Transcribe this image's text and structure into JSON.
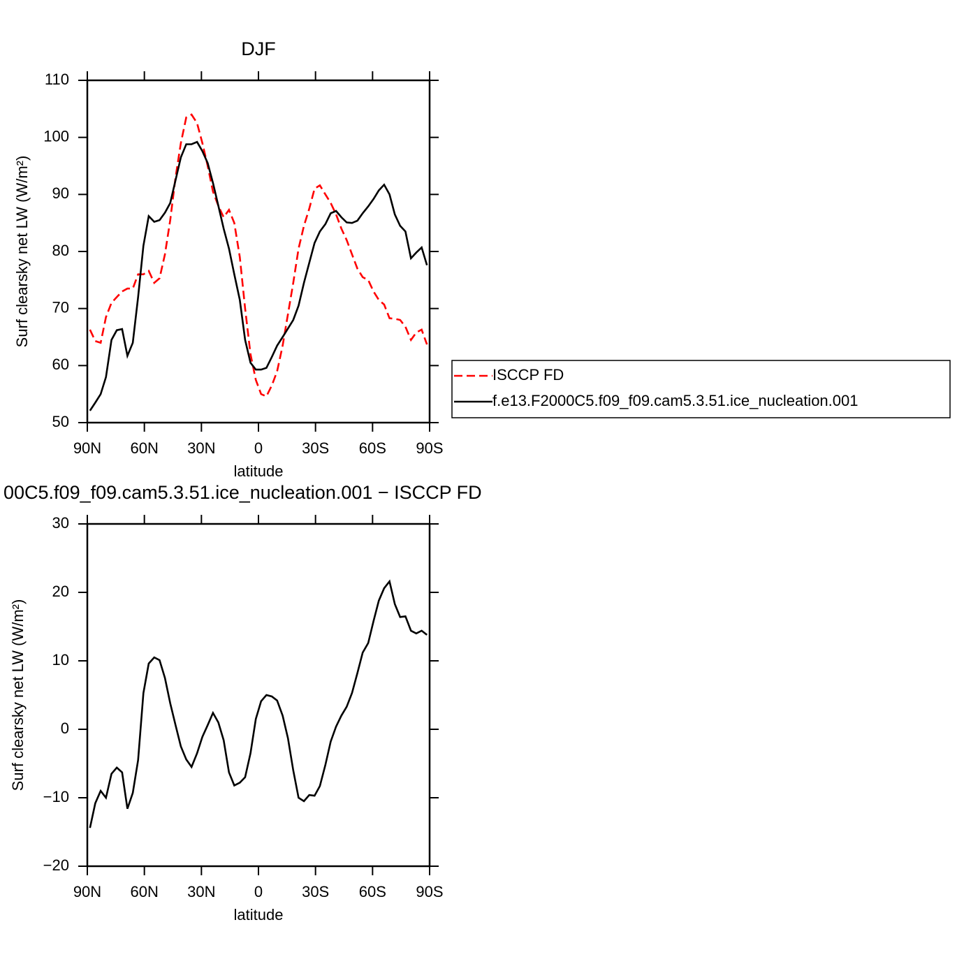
{
  "chart_data": [
    {
      "type": "line",
      "title": "DJF",
      "x_label": "latitude",
      "y_label": "Surf clearsky net LW (W/m²)",
      "x": [
        88.6,
        85.8,
        83.0,
        80.2,
        77.3,
        74.5,
        71.7,
        68.9,
        66.1,
        63.3,
        60.5,
        57.7,
        54.8,
        52.0,
        49.2,
        46.4,
        43.6,
        40.8,
        38.0,
        35.2,
        32.3,
        29.5,
        26.7,
        23.9,
        21.1,
        18.3,
        15.5,
        12.7,
        9.8,
        7.0,
        4.2,
        1.4,
        -1.4,
        -4.2,
        -7.0,
        -9.8,
        -12.7,
        -15.5,
        -18.3,
        -21.1,
        -23.9,
        -26.7,
        -29.5,
        -32.3,
        -35.2,
        -38.0,
        -40.8,
        -43.6,
        -46.4,
        -49.2,
        -52.0,
        -54.8,
        -57.7,
        -60.5,
        -63.3,
        -66.1,
        -68.9,
        -71.7,
        -74.5,
        -77.3,
        -80.2,
        -83.0,
        -85.8,
        -88.6
      ],
      "xlim": [
        90,
        -90
      ],
      "xticks": [
        {
          "value": 90,
          "label": "90N"
        },
        {
          "value": 60,
          "label": "60N"
        },
        {
          "value": 30,
          "label": "30N"
        },
        0,
        {
          "value": -30,
          "label": "30S"
        },
        {
          "value": -60,
          "label": "60S"
        },
        {
          "value": -90,
          "label": "90S"
        }
      ],
      "ylim": [
        50,
        110
      ],
      "yticks": [
        50,
        60,
        70,
        80,
        90,
        100,
        110
      ],
      "legend": "right",
      "series": [
        {
          "name": "ISCCP FD",
          "color": "#ff0000",
          "line_style": "dashed",
          "values": [
            66.3,
            64.3,
            64,
            68.5,
            71,
            72,
            73,
            73.5,
            73.5,
            76,
            76,
            76.6,
            74.5,
            75.3,
            79.5,
            85.5,
            93,
            99,
            103.5,
            104,
            102.5,
            99,
            95,
            90.5,
            88,
            86,
            87.3,
            85,
            79,
            70,
            62,
            57.5,
            55,
            54.6,
            56.5,
            59,
            63.5,
            69,
            74.5,
            80.5,
            84.5,
            87.5,
            91,
            91.6,
            90,
            88.5,
            86.5,
            84,
            82,
            79.5,
            77,
            75.5,
            75,
            73,
            71.5,
            70.7,
            68.3,
            68.2,
            68,
            66.8,
            64.5,
            65.8,
            66.3,
            63.7
          ]
        },
        {
          "name": "f.e13.F2000C5.f09_f09.cam5.3.51.ice_nucleation.001",
          "color": "#000000",
          "line_style": "solid",
          "values": [
            52.1,
            53.5,
            55,
            58,
            64.5,
            66.2,
            66.4,
            61.7,
            64,
            72,
            81,
            86.2,
            85.2,
            85.5,
            86.8,
            88.5,
            92.5,
            96.5,
            98.8,
            98.8,
            99.2,
            97.6,
            95.5,
            92,
            88,
            84,
            80.5,
            76,
            71.5,
            64.5,
            60.5,
            59.3,
            59.3,
            59.6,
            61.5,
            63.5,
            65,
            66.5,
            68,
            70.5,
            74.5,
            78,
            81.5,
            83.5,
            84.8,
            86.7,
            87.1,
            86,
            85.1,
            85,
            85.4,
            86.7,
            87.9,
            89.2,
            90.7,
            91.7,
            90,
            86.5,
            84.5,
            83.5,
            78.8,
            79.8,
            80.7,
            77.6
          ]
        }
      ]
    },
    {
      "type": "line",
      "title": "00C5.f09_f09.cam5.3.51.ice_nucleation.001 − ISCCP FD",
      "x_label": "latitude",
      "y_label": "Surf clearsky net LW (W/m²)",
      "x": [
        88.6,
        85.8,
        83.0,
        80.2,
        77.3,
        74.5,
        71.7,
        68.9,
        66.1,
        63.3,
        60.5,
        57.7,
        54.8,
        52.0,
        49.2,
        46.4,
        43.6,
        40.8,
        38.0,
        35.2,
        32.3,
        29.5,
        26.7,
        23.9,
        21.1,
        18.3,
        15.5,
        12.7,
        9.8,
        7.0,
        4.2,
        1.4,
        -1.4,
        -4.2,
        -7.0,
        -9.8,
        -12.7,
        -15.5,
        -18.3,
        -21.1,
        -23.9,
        -26.7,
        -29.5,
        -32.3,
        -35.2,
        -38.0,
        -40.8,
        -43.6,
        -46.4,
        -49.2,
        -52.0,
        -54.8,
        -57.7,
        -60.5,
        -63.3,
        -66.1,
        -68.9,
        -71.7,
        -74.5,
        -77.3,
        -80.2,
        -83.0,
        -85.8,
        -88.6
      ],
      "xlim": [
        90,
        -90
      ],
      "xticks": [
        {
          "value": 90,
          "label": "90N"
        },
        {
          "value": 60,
          "label": "60N"
        },
        {
          "value": 30,
          "label": "30N"
        },
        0,
        {
          "value": -30,
          "label": "30S"
        },
        {
          "value": -60,
          "label": "60S"
        },
        {
          "value": -90,
          "label": "90S"
        }
      ],
      "ylim": [
        -20,
        30
      ],
      "yticks": [
        {
          "value": -20,
          "label": "−20"
        },
        {
          "value": -10,
          "label": "−10"
        },
        0,
        10,
        20,
        30
      ],
      "series": [
        {
          "color": "#000000",
          "line_style": "solid",
          "values": [
            -14.4,
            -10.8,
            -9,
            -10,
            -6.5,
            -5.6,
            -6.3,
            -11.6,
            -9.3,
            -4.5,
            5.3,
            9.6,
            10.5,
            10.1,
            7.5,
            3.8,
            0.6,
            -2.5,
            -4.4,
            -5.5,
            -3.5,
            -1.1,
            0.6,
            2.4,
            1,
            -1.6,
            -6.3,
            -8.2,
            -7.8,
            -7,
            -3.5,
            1.5,
            4.1,
            5,
            4.8,
            4.2,
            2,
            -1.3,
            -6,
            -10,
            -10.5,
            -9.6,
            -9.7,
            -8.3,
            -5.2,
            -1.8,
            0.4,
            2,
            3.3,
            5.3,
            8.2,
            11.2,
            12.6,
            15.8,
            18.8,
            20.6,
            21.6,
            18.3,
            16.4,
            16.5,
            14.4,
            14,
            14.4,
            13.8
          ]
        }
      ]
    }
  ]
}
